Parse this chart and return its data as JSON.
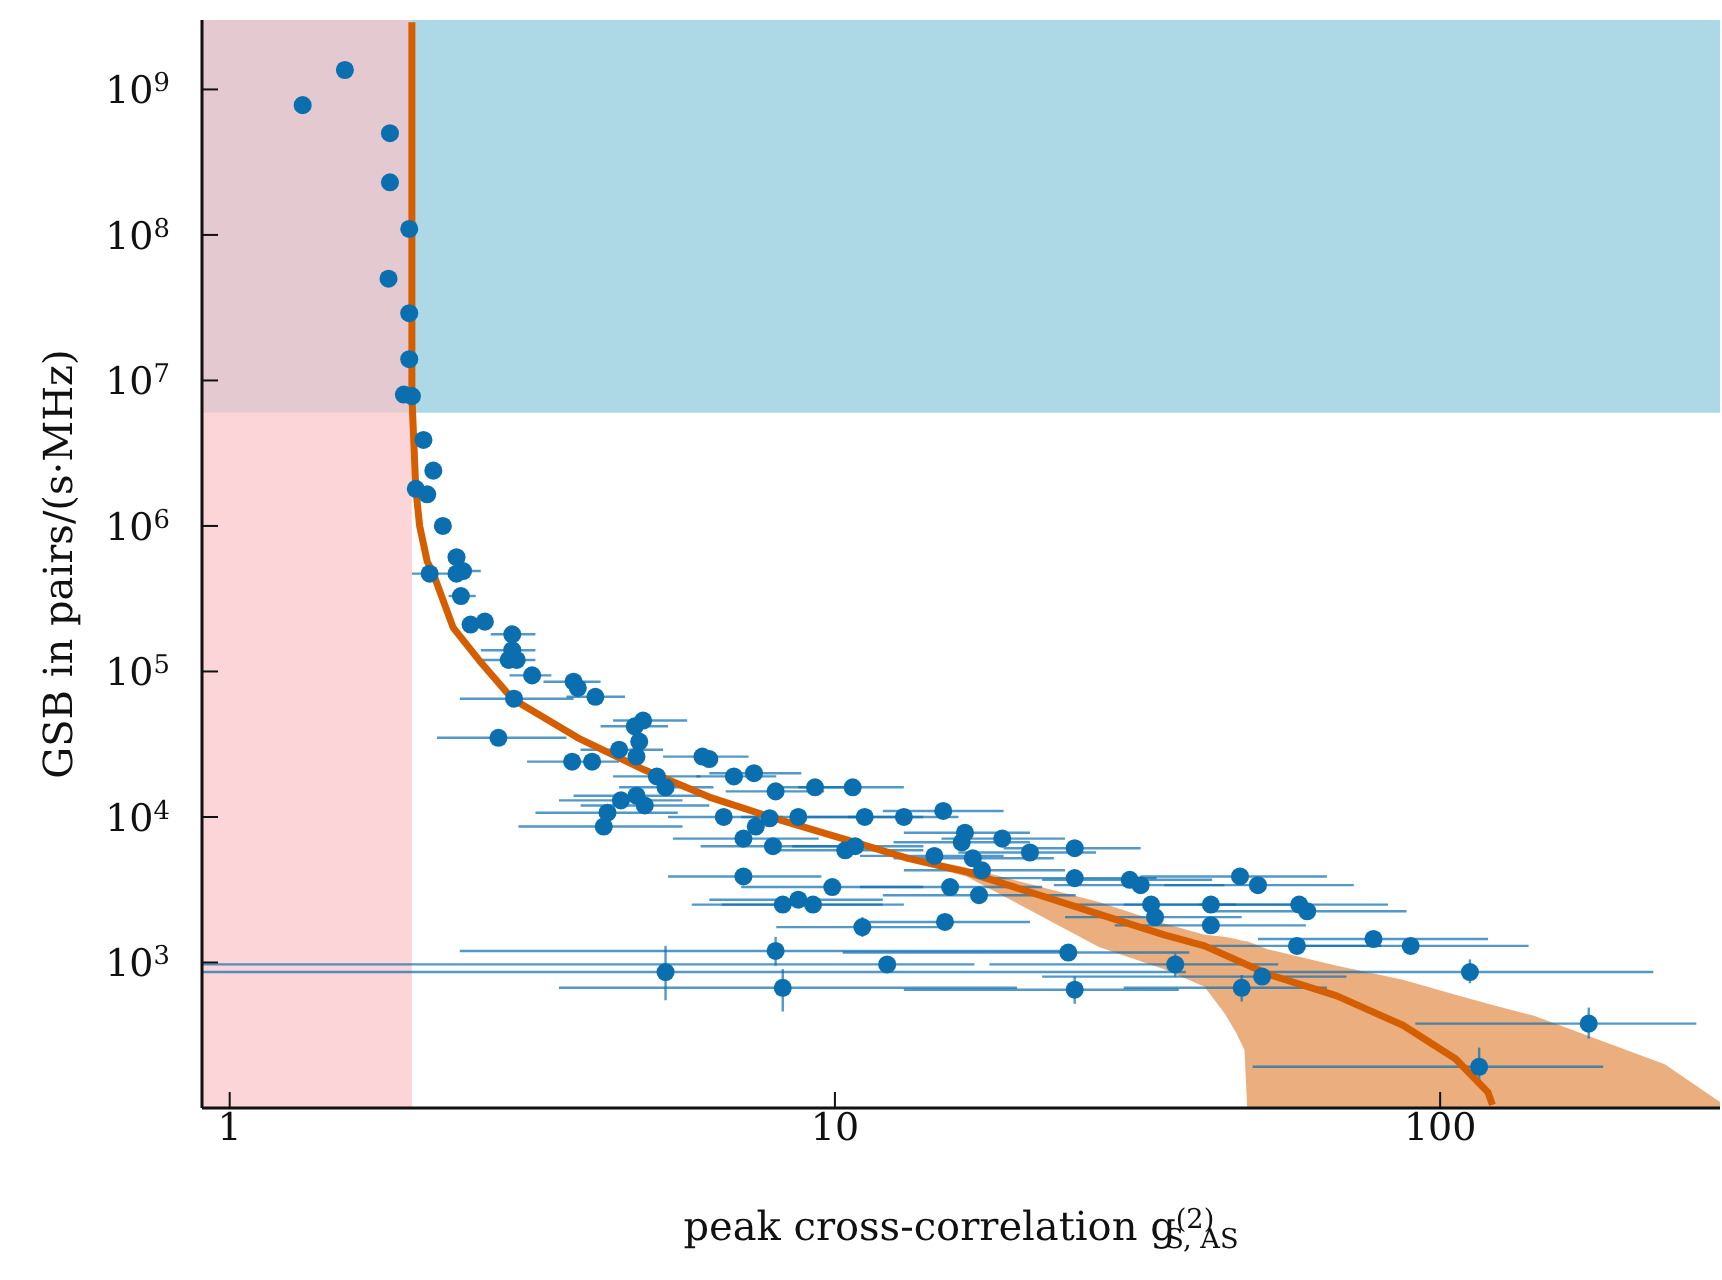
{
  "chart_data": {
    "type": "scatter",
    "xlabel": "peak cross-correlation g$^{(2)}$$_{S, AS}$",
    "ylabel": "GSB in pairs/(s·MHz)",
    "log": "xy",
    "legend": false,
    "marker": "circle",
    "xlim": [
      0.9,
      290
    ],
    "xticks": [
      1,
      10,
      100
    ],
    "ylim": [
      100,
      3000000000
    ],
    "yticks": [
      {
        "value": 1000,
        "label": "10$^{3}$"
      },
      {
        "value": 10000,
        "label": "10$^{4}$"
      },
      {
        "value": 100000,
        "label": "10$^{5}$"
      },
      {
        "value": 1000000,
        "label": "10$^{6}$"
      },
      {
        "value": 10000000,
        "label": "10$^{7}$"
      },
      {
        "value": 100000000,
        "label": "10$^{8}$"
      },
      {
        "value": 1000000000,
        "label": "10$^{9}$"
      }
    ],
    "bands": [
      {
        "axis": "y",
        "from": 6000000,
        "to": 3000000000,
        "color": "#add8e6"
      },
      {
        "axis": "x",
        "from": 0.9,
        "to": 2,
        "color": "#f9c5c8"
      }
    ],
    "series": [
      {
        "color": "#0a6eaf",
        "x": [
          1.32,
          1.55,
          1.84,
          1.84,
          1.98,
          1.83,
          1.98,
          1.98,
          1.94,
          2.0,
          2.09,
          2.17,
          2.03,
          2.12,
          2.25,
          2.37,
          2.14,
          2.43,
          2.37,
          2.41,
          2.5,
          2.64,
          2.93,
          2.93,
          2.89,
          2.98,
          3.16,
          2.95,
          2.78,
          3.7,
          3.76,
          4.02,
          4.82,
          4.67,
          4.75,
          4.4,
          4.7,
          3.68,
          3.97,
          5.08,
          5.25,
          6.04,
          6.2,
          6.81,
          7.35,
          7.98,
          9.27,
          10.7,
          11.2,
          13.0,
          8.7,
          6.55,
          7.8,
          7.4,
          7.06,
          7.9,
          10.4,
          7.06,
          4.43,
          4.7,
          4.85,
          4.21,
          4.15,
          8.7,
          9.9,
          7.98,
          5.25,
          8.2,
          8.2,
          9.2,
          11.1,
          12.2,
          15.1,
          10.8,
          16.4,
          16.2,
          18.9,
          21.0,
          24.9,
          14.6,
          16.9,
          17.5,
          15.5,
          17.3,
          15.2,
          24.9,
          30.7,
          32,
          33.3,
          33.8,
          46.7,
          50,
          41.8,
          41.8,
          58.5,
          60.3,
          58,
          24.3,
          24.9,
          36.5,
          47,
          50.8,
          77.6,
          89.4,
          112,
          176,
          116
        ],
        "values": [
          780000000,
          1360000000,
          500000000,
          230000000,
          110000000,
          50000000,
          29000000,
          14000000,
          8000000,
          7800000,
          3900000,
          2400000,
          1800000,
          1650000,
          1000000,
          610000,
          470000,
          490000,
          470000,
          330000,
          210000,
          220000,
          180000,
          140000,
          120000,
          120000,
          94000,
          65000,
          35000,
          85000,
          77000,
          67000,
          46000,
          42000,
          33000,
          29000,
          26000,
          24000,
          24000,
          19000,
          16000,
          26000,
          25000,
          19000,
          20000,
          15000,
          16000,
          16000,
          10000,
          10000,
          10000,
          10000,
          9800,
          8600,
          7100,
          6300,
          5900,
          3900,
          13000,
          14000,
          12000,
          10700,
          8600,
          2700,
          3300,
          1200,
          860,
          670,
          2500,
          2500,
          1750,
          970,
          11000,
          6300,
          7800,
          6700,
          7100,
          5700,
          6100,
          5400,
          5200,
          4300,
          3300,
          2900,
          1900,
          3800,
          3700,
          3400,
          2500,
          2050,
          3900,
          3400,
          2500,
          1800,
          2500,
          2250,
          1300,
          1170,
          650,
          970,
          670,
          800,
          1450,
          1300,
          860,
          380,
          192
        ],
        "xerrors": [
          null,
          null,
          null,
          null,
          null,
          null,
          null,
          null,
          null,
          null,
          null,
          null,
          null,
          null,
          null,
          null,
          [
            2.0,
            2.3
          ],
          [
            2.3,
            2.6
          ],
          null,
          [
            2.3,
            2.55
          ],
          null,
          null,
          [
            2.7,
            3.2
          ],
          [
            2.6,
            3.2
          ],
          [
            2.6,
            3.2
          ],
          null,
          [
            2.9,
            3.4
          ],
          [
            2.4,
            3.7
          ],
          [
            2.2,
            3.6
          ],
          [
            3.3,
            4.1
          ],
          null,
          [
            3.6,
            4.5
          ],
          [
            4.3,
            5.7
          ],
          [
            4.1,
            5.3
          ],
          null,
          [
            3.8,
            5.2
          ],
          null,
          [
            3.1,
            4.4
          ],
          null,
          [
            4.3,
            6.0
          ],
          [
            4.4,
            6.3
          ],
          [
            5.2,
            7.2
          ],
          null,
          [
            5.9,
            8.0
          ],
          [
            6.2,
            8.8
          ],
          [
            6.6,
            9.6
          ],
          [
            7.8,
            11
          ],
          [
            8.7,
            13
          ],
          [
            9,
            14
          ],
          [
            10.5,
            16
          ],
          [
            7,
            11
          ],
          [
            5.3,
            8.2
          ],
          null,
          null,
          [
            5.4,
            9.4
          ],
          [
            6,
            10.5
          ],
          [
            8,
            14
          ],
          [
            5.3,
            9.5
          ],
          [
            3.5,
            5.6
          ],
          [
            3.7,
            6
          ],
          [
            3.8,
            6.2
          ],
          [
            3.2,
            5.5
          ],
          [
            3.0,
            5.6
          ],
          [
            6.2,
            12
          ],
          [
            7,
            14
          ],
          [
            2.4,
            25
          ],
          [
            0.9,
            38
          ],
          [
            3.5,
            20
          ],
          [
            5.8,
            12
          ],
          [
            6.5,
            13
          ],
          [
            8,
            15
          ],
          [
            0.9,
            17
          ],
          [
            12,
            19
          ],
          [
            8.5,
            14
          ],
          [
            13,
            21
          ],
          [
            12.5,
            21
          ],
          [
            15,
            24
          ],
          [
            16,
            27
          ],
          [
            19,
            32
          ],
          [
            11,
            19
          ],
          [
            12.5,
            23
          ],
          [
            13,
            24
          ],
          [
            11,
            22
          ],
          [
            12,
            25
          ],
          [
            11,
            21
          ],
          [
            18,
            34
          ],
          [
            22,
            42
          ],
          [
            23,
            44
          ],
          [
            24,
            46
          ],
          [
            24,
            47
          ],
          [
            32,
            65
          ],
          [
            35,
            72
          ],
          [
            30,
            58
          ],
          [
            29,
            60
          ],
          [
            40,
            82
          ],
          [
            42,
            88
          ],
          [
            40,
            80
          ],
          [
            10.3,
            38.5
          ],
          [
            13,
            37
          ],
          [
            18,
            54
          ],
          [
            30,
            65
          ],
          [
            22,
            70
          ],
          [
            50,
            120
          ],
          [
            58,
            140
          ],
          [
            50,
            225
          ],
          [
            91,
            265
          ],
          [
            49,
            186
          ]
        ],
        "errors": [
          null,
          null,
          null,
          null,
          null,
          null,
          null,
          null,
          null,
          null,
          null,
          null,
          null,
          null,
          null,
          null,
          null,
          null,
          null,
          null,
          null,
          null,
          null,
          null,
          null,
          null,
          null,
          null,
          null,
          null,
          null,
          null,
          null,
          null,
          null,
          null,
          null,
          null,
          null,
          null,
          null,
          null,
          null,
          null,
          null,
          null,
          null,
          null,
          null,
          null,
          null,
          null,
          null,
          null,
          null,
          null,
          null,
          null,
          null,
          null,
          null,
          null,
          null,
          null,
          null,
          [
            950,
            1500
          ],
          [
            550,
            1300
          ],
          [
            460,
            900
          ],
          null,
          null,
          [
            1500,
            2050
          ],
          null,
          null,
          null,
          null,
          null,
          null,
          null,
          null,
          null,
          null,
          null,
          null,
          null,
          null,
          null,
          null,
          null,
          null,
          null,
          null,
          null,
          null,
          null,
          null,
          null,
          null,
          null,
          [
            520,
            800
          ],
          [
            800,
            1150
          ],
          [
            540,
            820
          ],
          null,
          null,
          null,
          [
            720,
            1050
          ],
          [
            300,
            490
          ],
          [
            140,
            260
          ]
        ]
      },
      {
        "type": "line",
        "color": "#d55e00",
        "line_style": "solid",
        "marker": "none",
        "x": [
          2.0,
          2.0,
          2.03,
          2.06,
          2.12,
          2.17,
          2.34,
          2.58,
          2.93,
          3.76,
          4.85,
          6.2,
          8.0,
          10.3,
          13.2,
          16.5,
          27.3,
          35,
          40.8,
          44,
          46,
          47.5,
          48,
          52,
          67.5,
          86.8,
          106,
          120,
          122,
          143,
          235,
          290
        ],
        "values": [
          2900000000,
          7800000,
          1800000,
          1000000,
          570000,
          470000,
          200000,
          120000,
          65000,
          35000,
          21000,
          13700,
          9700,
          7100,
          5200,
          4200,
          2150,
          1550,
          1300,
          null,
          null,
          null,
          null,
          830,
          590,
          370,
          218,
          128,
          105,
          null,
          null,
          null
        ],
        "lower": [
          null,
          null,
          null,
          null,
          null,
          null,
          null,
          null,
          null,
          null,
          null,
          null,
          null,
          6900,
          5000,
          3900,
          1280,
          900,
          680,
          450,
          330,
          250,
          100,
          100,
          100,
          100,
          100,
          100,
          100,
          100,
          100,
          100
        ],
        "upper": [
          null,
          null,
          null,
          null,
          null,
          null,
          null,
          null,
          null,
          null,
          null,
          null,
          null,
          7300,
          5400,
          4500,
          2600,
          1850,
          1550,
          1500,
          1450,
          1400,
          1400,
          1230,
          950,
          760,
          600,
          520,
          510,
          430,
          200,
          110
        ]
      }
    ]
  }
}
